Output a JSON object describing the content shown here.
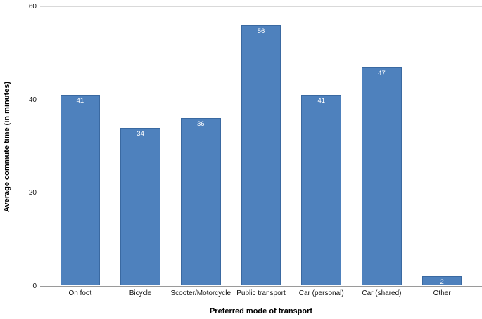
{
  "chart_data": {
    "type": "bar",
    "title": "",
    "xlabel": "Preferred mode of transport",
    "ylabel": "Average commute time (in minutes)",
    "categories": [
      "On foot",
      "Bicycle",
      "Scooter/Motorcycle",
      "Public transport",
      "Car (personal)",
      "Car (shared)",
      "Other"
    ],
    "values": [
      41,
      34,
      36,
      56,
      41,
      47,
      2
    ],
    "ylim": [
      0,
      60
    ],
    "yticks": [
      0,
      20,
      40,
      60
    ],
    "grid": "horizontal",
    "legend": "none",
    "bar_label_position": "inside-top",
    "colors": {
      "bar_fill": "#4e81bd",
      "bar_border": "#3a69a1",
      "bar_label": "#ffffff",
      "gridline": "#d9d9d9",
      "axis_line": "#9a9a9a",
      "text": "#000000",
      "background": "#ffffff"
    }
  }
}
